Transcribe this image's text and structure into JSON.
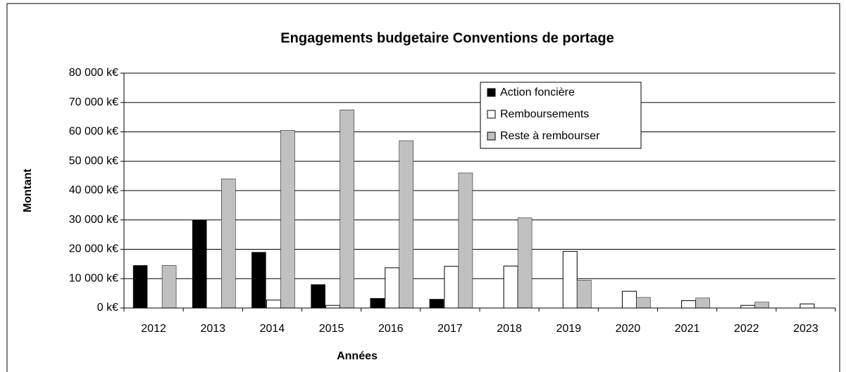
{
  "chart_data": {
    "type": "bar",
    "title": "Engagements budgetaire Conventions de portage",
    "x_label": "Années",
    "y_label": "Montant",
    "categories": [
      "2012",
      "2013",
      "2014",
      "2015",
      "2016",
      "2017",
      "2018",
      "2019",
      "2020",
      "2021",
      "2022",
      "2023"
    ],
    "series": [
      {
        "name": "Action foncière",
        "color": "#000000",
        "values": [
          14500,
          30000,
          19000,
          8000,
          3300,
          3000,
          0,
          0,
          0,
          0,
          0,
          0
        ]
      },
      {
        "name": "Remboursements",
        "color": "#ffffff",
        "values": [
          0,
          0,
          2700,
          900,
          13700,
          14200,
          14300,
          19300,
          5700,
          2500,
          900,
          1400
        ]
      },
      {
        "name": "Reste à rembourser",
        "color": "#c0c0c0",
        "values": [
          14500,
          44000,
          60500,
          67500,
          57000,
          46000,
          30700,
          9500,
          3600,
          3400,
          2000,
          0
        ]
      }
    ],
    "ylim": [
      0,
      80000
    ],
    "yticks": [
      {
        "value": 0,
        "label": "0 k€"
      },
      {
        "value": 10000,
        "label": "10 000 k€"
      },
      {
        "value": 20000,
        "label": "20 000 k€"
      },
      {
        "value": 30000,
        "label": "30 000 k€"
      },
      {
        "value": 40000,
        "label": "40 000 k€"
      },
      {
        "value": 50000,
        "label": "50 000 k€"
      },
      {
        "value": 60000,
        "label": "60 000 k€"
      },
      {
        "value": 70000,
        "label": "70 000 k€"
      },
      {
        "value": 80000,
        "label": "80 000 k€"
      }
    ],
    "grid": true,
    "legend": "top-center"
  }
}
